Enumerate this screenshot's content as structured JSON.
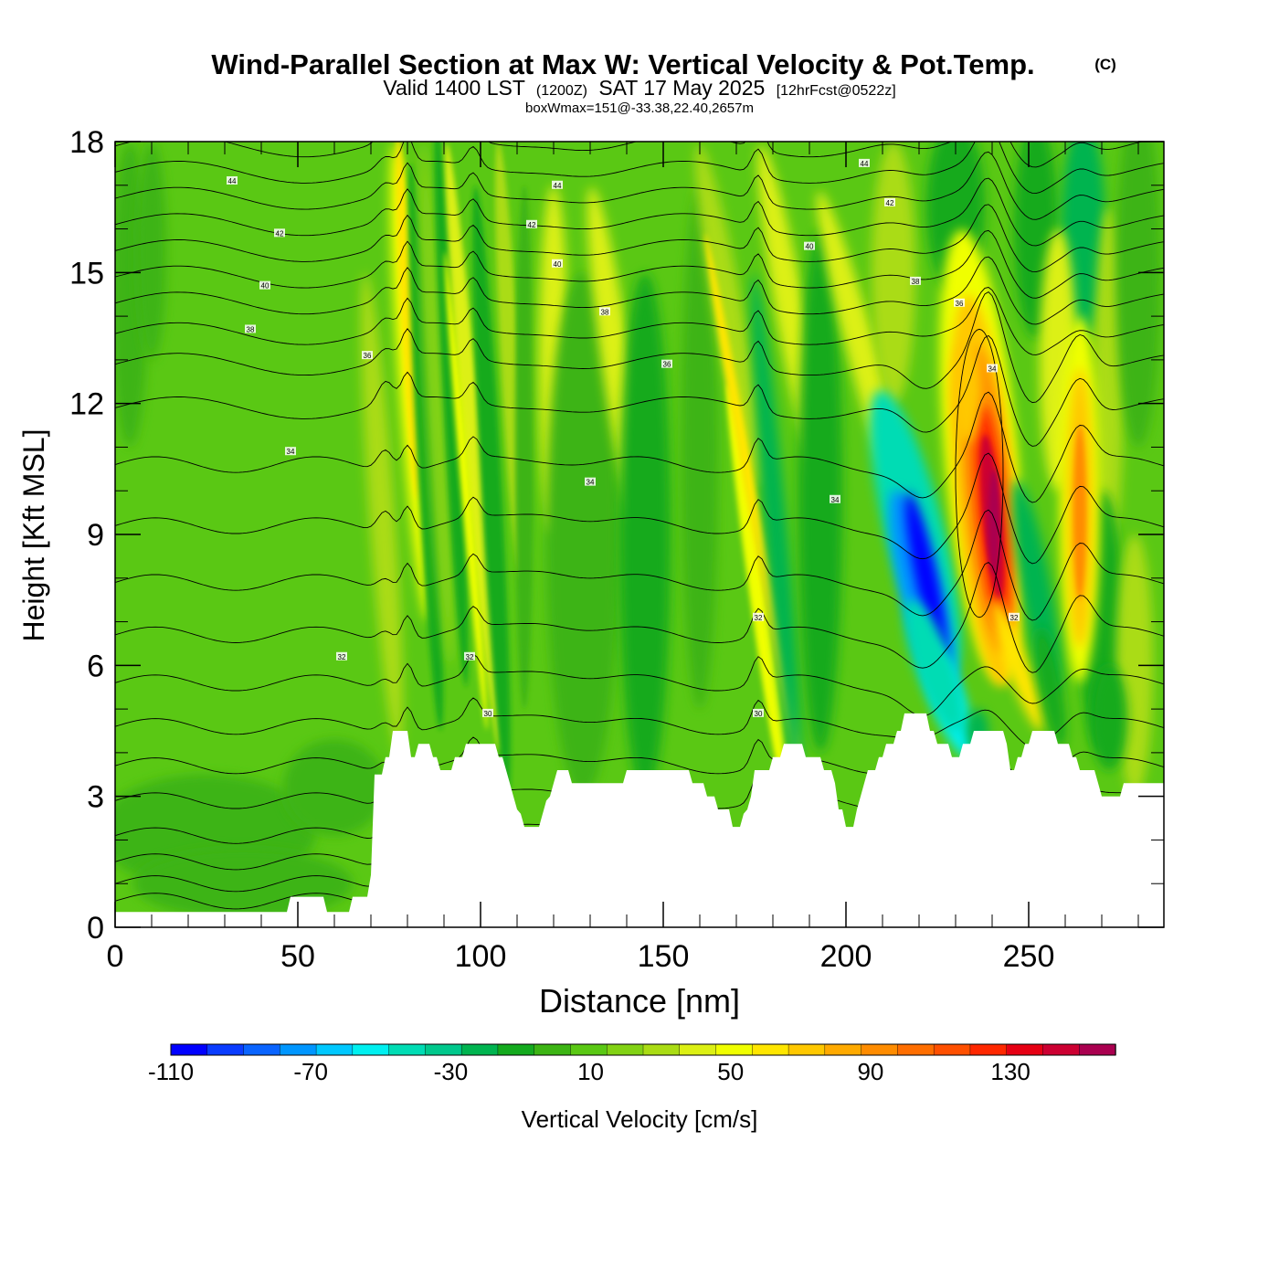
{
  "chart_data": {
    "type": "heatmap",
    "title": "Wind-Parallel Section at Max W: Vertical Velocity & Pot.Temp.",
    "title_mark": "(C)",
    "subtitle_main_1": "Valid 1400 LST",
    "subtitle_utc": "(1200Z)",
    "subtitle_main_2": "SAT 17 May 2025",
    "subtitle_fcst": "[12hrFcst@0522z]",
    "subtitle_2": "boxWmax=151@-33.38,22.40,2657m",
    "xlabel": "Distance [nm]",
    "ylabel": "Height [Kft MSL]",
    "xlim": [
      0,
      287
    ],
    "ylim": [
      0,
      18
    ],
    "xticks": [
      "0",
      "50",
      "100",
      "150",
      "200",
      "250"
    ],
    "xtick_values": [
      0,
      50,
      100,
      150,
      200,
      250
    ],
    "yticks": [
      "0",
      "3",
      "6",
      "9",
      "12",
      "15",
      "18"
    ],
    "ytick_values": [
      0,
      3,
      6,
      9,
      12,
      15,
      18
    ],
    "colorbar": {
      "label": "Vertical Velocity [cm/s]",
      "ticks": [
        "-110",
        "-70",
        "-30",
        "10",
        "50",
        "90",
        "130"
      ],
      "tick_values": [
        -110,
        -70,
        -30,
        10,
        50,
        90,
        130
      ],
      "min": -110,
      "max": 160,
      "step": 10,
      "colors": [
        "#0000ff",
        "#0a3cff",
        "#0a64ff",
        "#0096ff",
        "#00c8ff",
        "#00f0f0",
        "#00dcb4",
        "#00c88c",
        "#00b450",
        "#14aa1e",
        "#3cb414",
        "#5ac814",
        "#82d214",
        "#aadc14",
        "#dcf014",
        "#f0ff00",
        "#ffe600",
        "#ffc800",
        "#ffaa00",
        "#ff8c00",
        "#ff6e00",
        "#ff5000",
        "#ff2800",
        "#e60014",
        "#cc0032",
        "#aa0050"
      ]
    },
    "background_field": {
      "variable": "vertical velocity (cm/s)",
      "description_levels": "green 0-10 dominant"
    },
    "updraft_core": {
      "x": 240,
      "y": 9.5,
      "max_w": 151
    },
    "downdraft_core": {
      "x": 220,
      "y": 8.0,
      "min_w": -105
    },
    "secondary_updraft": {
      "x": 263,
      "y": 10.0,
      "max_w": 80
    },
    "terrain": [
      [
        0,
        0.35
      ],
      [
        47,
        0.35
      ],
      [
        48,
        0.7
      ],
      [
        57,
        0.7
      ],
      [
        58,
        0.35
      ],
      [
        64,
        0.35
      ],
      [
        65,
        0.7
      ],
      [
        69,
        0.7
      ],
      [
        70,
        1.2
      ],
      [
        71,
        3.5
      ],
      [
        73,
        3.5
      ],
      [
        74,
        3.9
      ],
      [
        75,
        3.9
      ],
      [
        76,
        4.5
      ],
      [
        80,
        4.5
      ],
      [
        81,
        3.9
      ],
      [
        82,
        3.9
      ],
      [
        83,
        4.2
      ],
      [
        86,
        4.2
      ],
      [
        87,
        3.9
      ],
      [
        88,
        3.9
      ],
      [
        89,
        3.6
      ],
      [
        92,
        3.6
      ],
      [
        93,
        3.9
      ],
      [
        95,
        3.9
      ],
      [
        96,
        4.2
      ],
      [
        104,
        4.2
      ],
      [
        105,
        3.9
      ],
      [
        106,
        3.9
      ],
      [
        107,
        3.6
      ],
      [
        108,
        3.3
      ],
      [
        109,
        3.0
      ],
      [
        110,
        2.7
      ],
      [
        111,
        2.6
      ],
      [
        112,
        2.3
      ],
      [
        116,
        2.3
      ],
      [
        117,
        2.6
      ],
      [
        118,
        2.9
      ],
      [
        119,
        3.0
      ],
      [
        120,
        3.3
      ],
      [
        121,
        3.6
      ],
      [
        124,
        3.6
      ],
      [
        125,
        3.3
      ],
      [
        139,
        3.3
      ],
      [
        140,
        3.6
      ],
      [
        157,
        3.6
      ],
      [
        158,
        3.3
      ],
      [
        161,
        3.3
      ],
      [
        162,
        3.0
      ],
      [
        164,
        3.0
      ],
      [
        165,
        2.7
      ],
      [
        168,
        2.7
      ],
      [
        169,
        2.3
      ],
      [
        171,
        2.3
      ],
      [
        172,
        2.6
      ],
      [
        173,
        2.7
      ],
      [
        174,
        3.0
      ],
      [
        175,
        3.6
      ],
      [
        179,
        3.6
      ],
      [
        180,
        3.9
      ],
      [
        182,
        3.9
      ],
      [
        183,
        4.2
      ],
      [
        188,
        4.2
      ],
      [
        189,
        3.9
      ],
      [
        193,
        3.9
      ],
      [
        194,
        3.6
      ],
      [
        196,
        3.6
      ],
      [
        197,
        3.3
      ],
      [
        198,
        2.7
      ],
      [
        199,
        2.7
      ],
      [
        200,
        2.3
      ],
      [
        202,
        2.3
      ],
      [
        203,
        2.7
      ],
      [
        204,
        3.0
      ],
      [
        205,
        3.3
      ],
      [
        206,
        3.6
      ],
      [
        208,
        3.6
      ],
      [
        209,
        3.9
      ],
      [
        210,
        3.9
      ],
      [
        211,
        4.2
      ],
      [
        213,
        4.2
      ],
      [
        214,
        4.5
      ],
      [
        215,
        4.5
      ],
      [
        216,
        4.9
      ],
      [
        222,
        4.9
      ],
      [
        223,
        4.5
      ],
      [
        224,
        4.5
      ],
      [
        225,
        4.2
      ],
      [
        228,
        4.2
      ],
      [
        229,
        3.9
      ],
      [
        231,
        3.9
      ],
      [
        232,
        4.2
      ],
      [
        234,
        4.2
      ],
      [
        235,
        4.5
      ],
      [
        243,
        4.5
      ],
      [
        244,
        4.2
      ],
      [
        245,
        3.6
      ],
      [
        246,
        3.6
      ],
      [
        247,
        3.9
      ],
      [
        248,
        3.9
      ],
      [
        249,
        4.2
      ],
      [
        250,
        4.2
      ],
      [
        251,
        4.5
      ],
      [
        257,
        4.5
      ],
      [
        258,
        4.2
      ],
      [
        261,
        4.2
      ],
      [
        262,
        3.9
      ],
      [
        263,
        3.9
      ],
      [
        264,
        3.6
      ],
      [
        268,
        3.6
      ],
      [
        269,
        3.3
      ],
      [
        270,
        3.0
      ],
      [
        275,
        3.0
      ],
      [
        276,
        3.3
      ],
      [
        287,
        3.3
      ]
    ],
    "contour_labels": [
      {
        "x": 32,
        "y": 17.1,
        "text": "44"
      },
      {
        "x": 45,
        "y": 15.9,
        "text": "42"
      },
      {
        "x": 41,
        "y": 14.7,
        "text": "40"
      },
      {
        "x": 37,
        "y": 13.7,
        "text": "38"
      },
      {
        "x": 69,
        "y": 13.1,
        "text": "36"
      },
      {
        "x": 48,
        "y": 10.9,
        "text": "34"
      },
      {
        "x": 62,
        "y": 6.2,
        "text": "32"
      },
      {
        "x": 121,
        "y": 17.0,
        "text": "44"
      },
      {
        "x": 114,
        "y": 16.1,
        "text": "42"
      },
      {
        "x": 121,
        "y": 15.2,
        "text": "40"
      },
      {
        "x": 134,
        "y": 14.1,
        "text": "38"
      },
      {
        "x": 151,
        "y": 12.9,
        "text": "36"
      },
      {
        "x": 130,
        "y": 10.2,
        "text": "34"
      },
      {
        "x": 97,
        "y": 6.2,
        "text": "32"
      },
      {
        "x": 102,
        "y": 4.9,
        "text": "30"
      },
      {
        "x": 205,
        "y": 17.5,
        "text": "44"
      },
      {
        "x": 212,
        "y": 16.6,
        "text": "42"
      },
      {
        "x": 190,
        "y": 15.6,
        "text": "40"
      },
      {
        "x": 219,
        "y": 14.8,
        "text": "38"
      },
      {
        "x": 231,
        "y": 14.3,
        "text": "36"
      },
      {
        "x": 240,
        "y": 12.8,
        "text": "34"
      },
      {
        "x": 197,
        "y": 9.8,
        "text": "34"
      },
      {
        "x": 176,
        "y": 7.1,
        "text": "32"
      },
      {
        "x": 176,
        "y": 4.9,
        "text": "30"
      },
      {
        "x": 246,
        "y": 7.1,
        "text": "32"
      }
    ]
  }
}
